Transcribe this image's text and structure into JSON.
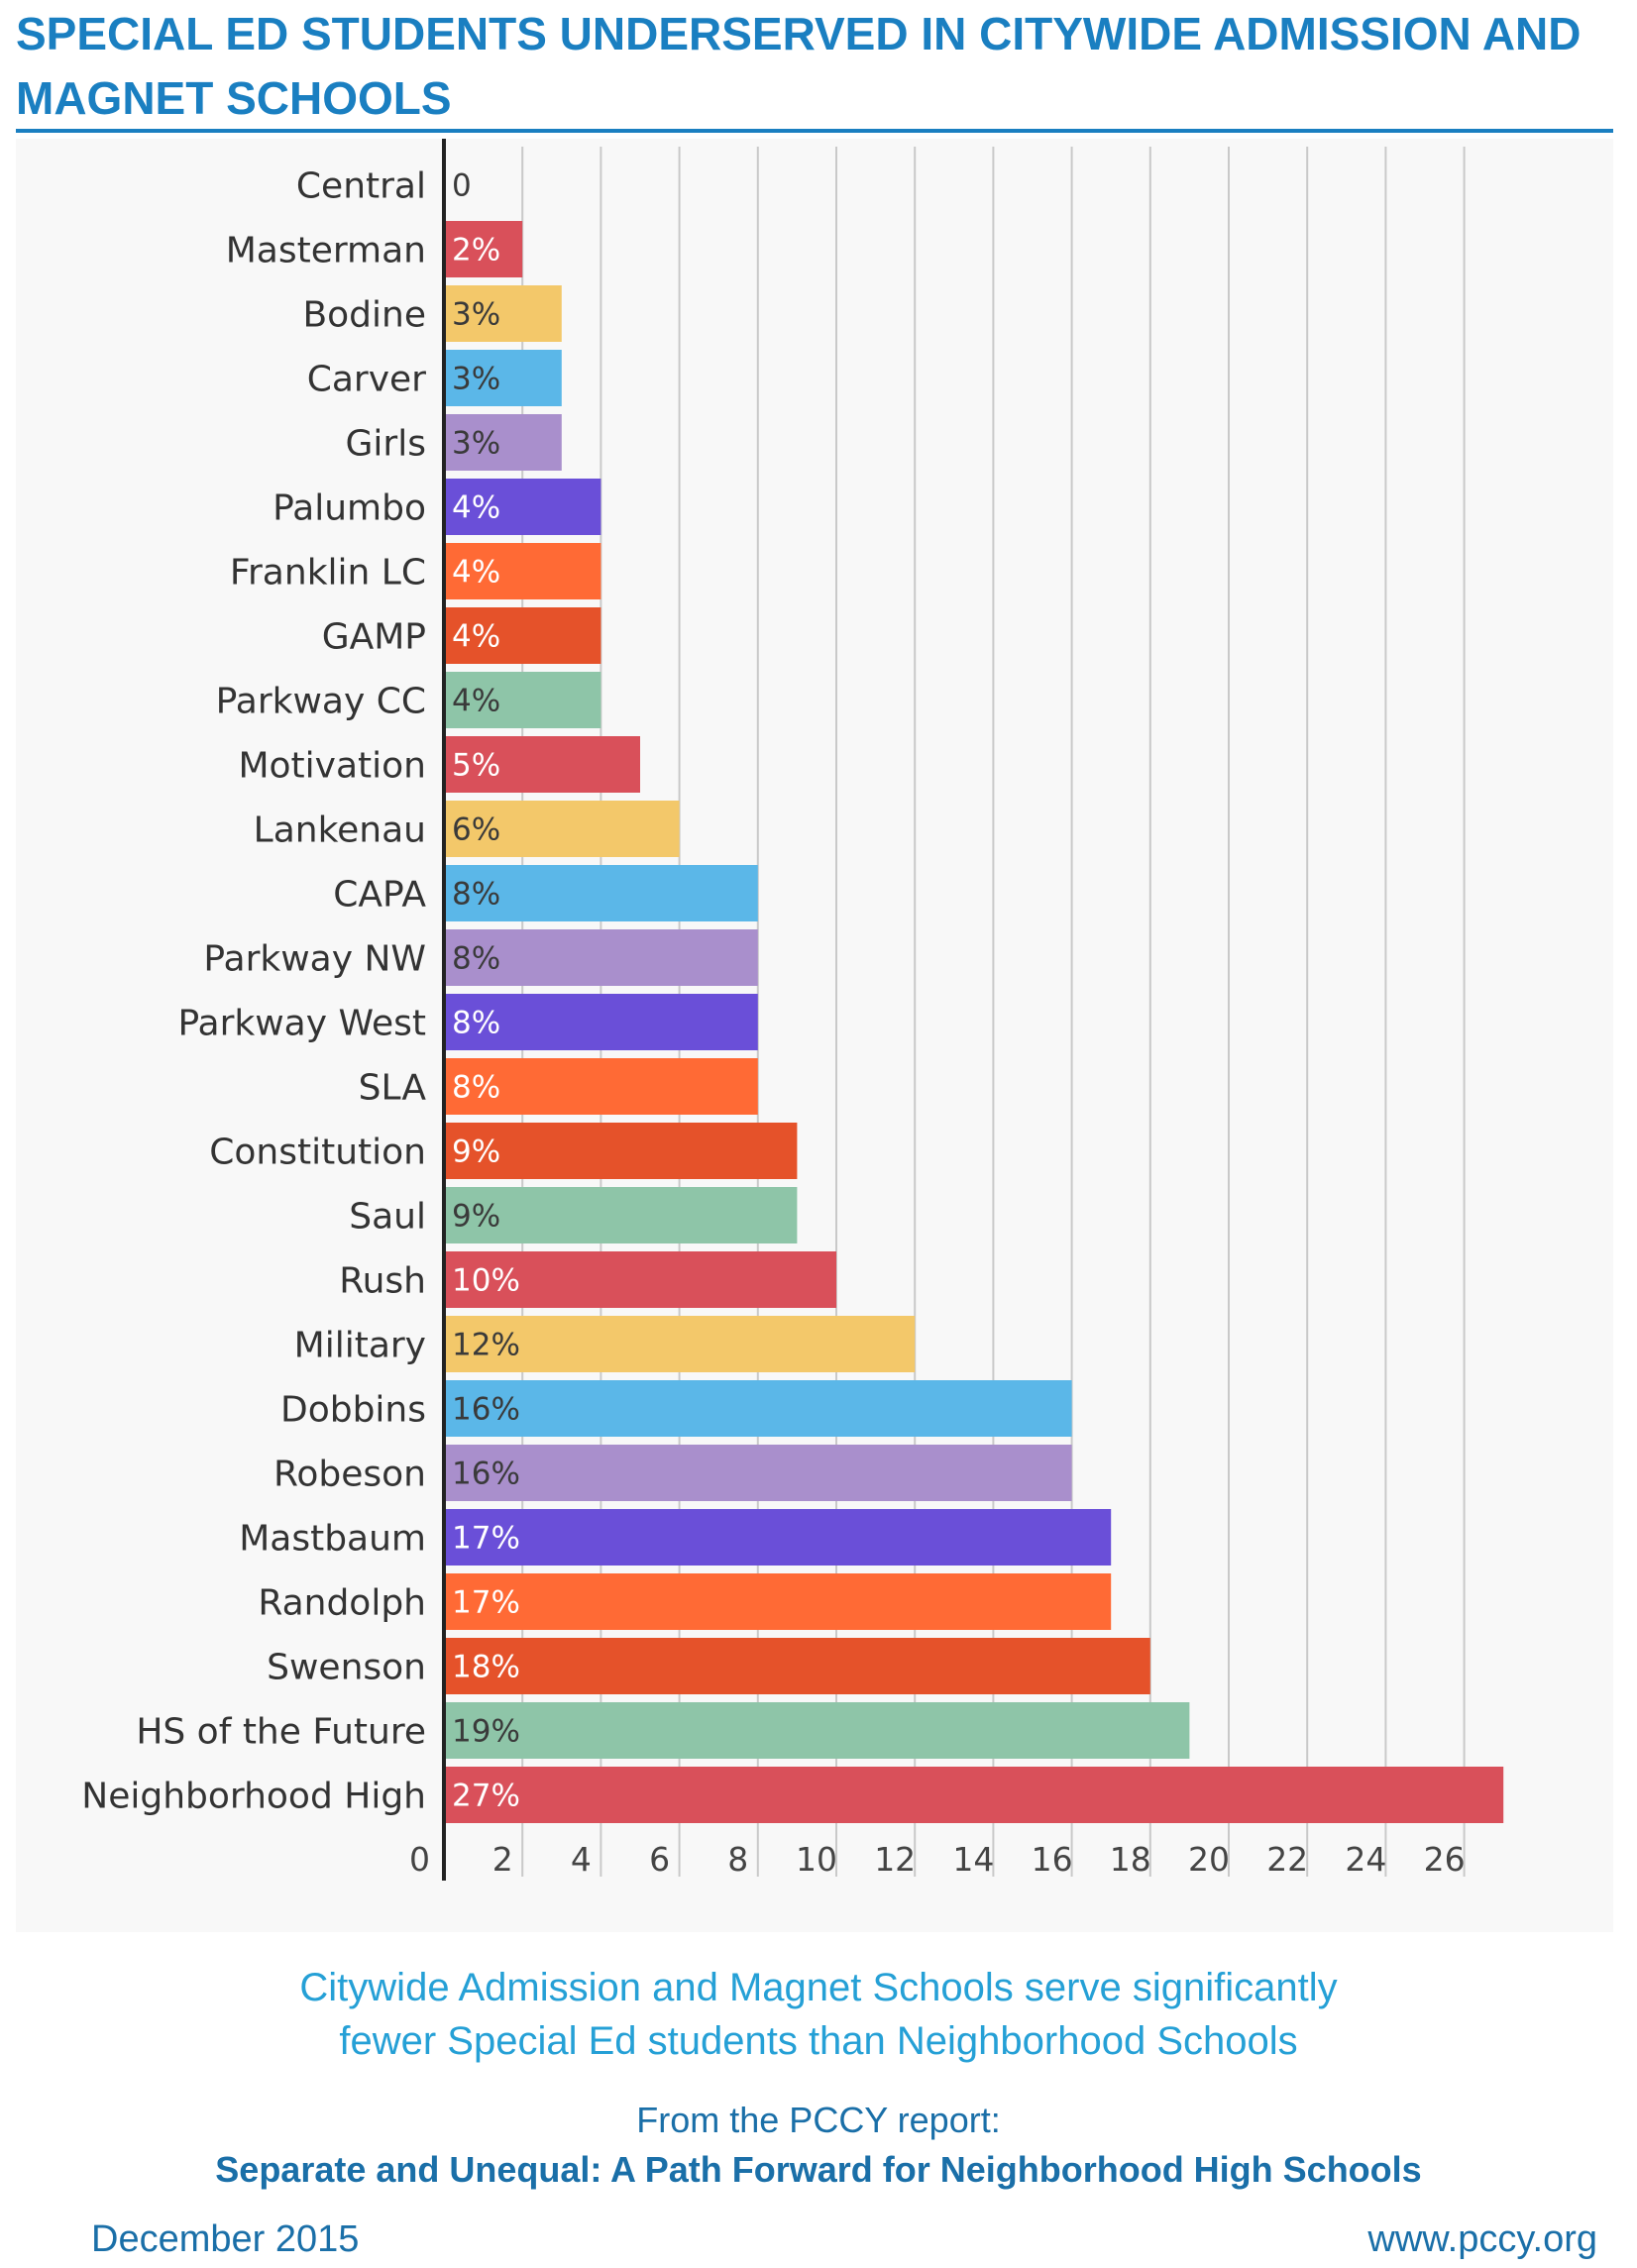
{
  "header": {
    "title": "SPECIAL ED STUDENTS UNDERSERVED IN CITYWIDE ADMISSION AND MAGNET SCHOOLS"
  },
  "chart_data": {
    "type": "bar",
    "orientation": "horizontal",
    "categories": [
      "Central",
      "Masterman",
      "Bodine",
      "Carver",
      "Girls",
      "Palumbo",
      "Franklin LC",
      "GAMP",
      "Parkway CC",
      "Motivation",
      "Lankenau",
      "CAPA",
      "Parkway NW",
      "Parkway West",
      "SLA",
      "Constitution",
      "Saul",
      "Rush",
      "Military",
      "Dobbins",
      "Robeson",
      "Mastbaum",
      "Randolph",
      "Swenson",
      "HS of the Future",
      "Neighborhood High"
    ],
    "values": [
      0,
      2,
      3,
      3,
      3,
      4,
      4,
      4,
      4,
      5,
      6,
      8,
      8,
      8,
      8,
      9,
      9,
      10,
      12,
      16,
      16,
      17,
      17,
      18,
      19,
      27
    ],
    "data_labels": [
      "0",
      "2%",
      "3%",
      "3%",
      "3%",
      "4%",
      "4%",
      "4%",
      "4%",
      "5%",
      "6%",
      "8%",
      "8%",
      "8%",
      "8%",
      "9%",
      "9%",
      "10%",
      "12%",
      "16%",
      "16%",
      "17%",
      "17%",
      "18%",
      "19%",
      "27%"
    ],
    "bar_colors": [
      "#d9505a",
      "#d9505a",
      "#f3c86a",
      "#5bb7e8",
      "#a98fcc",
      "#6a4fd8",
      "#ff6a35",
      "#e5522a",
      "#8ec5a8",
      "#d9505a",
      "#f3c86a",
      "#5bb7e8",
      "#a98fcc",
      "#6a4fd8",
      "#ff6a35",
      "#e5522a",
      "#8ec5a8",
      "#d9505a",
      "#f3c86a",
      "#5bb7e8",
      "#a98fcc",
      "#6a4fd8",
      "#ff6a35",
      "#e5522a",
      "#8ec5a8",
      "#d9505a"
    ],
    "x_ticks": [
      0,
      2,
      4,
      6,
      8,
      10,
      12,
      14,
      16,
      18,
      20,
      22,
      24,
      26
    ],
    "xlim": [
      0,
      27
    ],
    "grid": true,
    "xlabel": "",
    "ylabel": ""
  },
  "caption": {
    "line1": "Citywide Admission and Magnet Schools serve significantly",
    "line2": "fewer Special Ed students than Neighborhood Schools"
  },
  "source": {
    "label": "From the PCCY report:",
    "title": "Separate and Unequal: A Path Forward for Neighborhood High Schools"
  },
  "footer": {
    "date": "December 2015",
    "url": "www.pccy.org"
  },
  "colors": {
    "title_blue": "#1a7fc1",
    "caption_blue": "#25a0d6"
  }
}
